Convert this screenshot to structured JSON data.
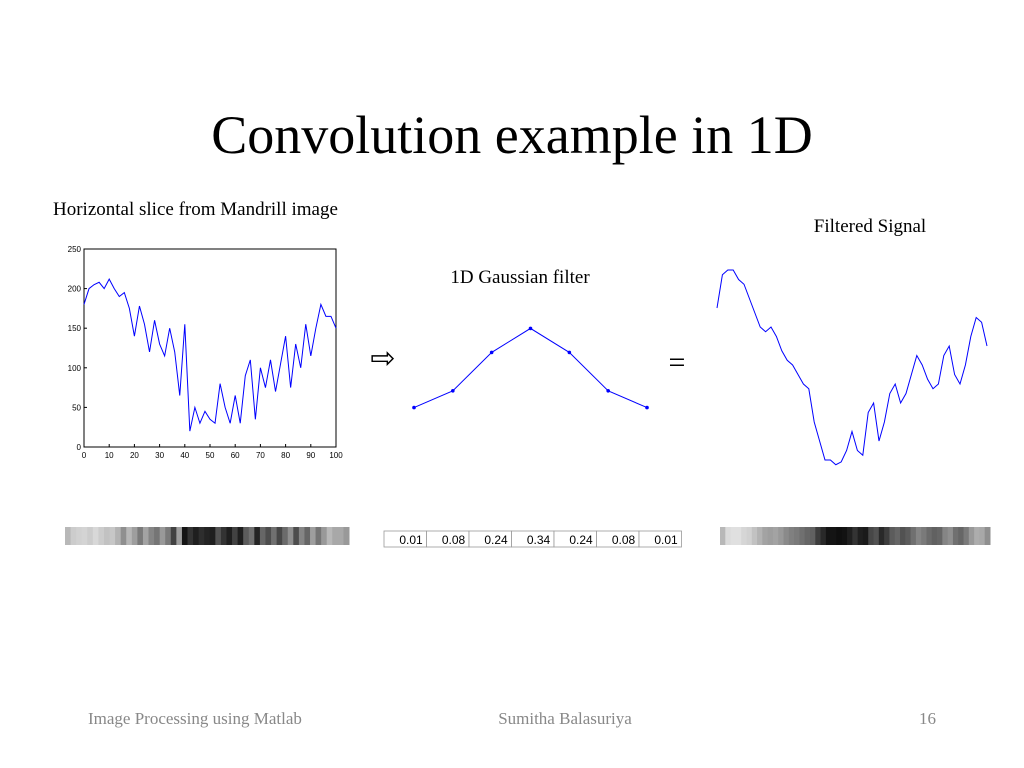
{
  "title": "Convolution example in 1D",
  "labels": {
    "signal": "Horizontal slice from Mandrill image",
    "filter": "1D Gaussian filter",
    "filtered": "Filtered Signal",
    "operator": "⇨",
    "equals": "="
  },
  "footer": {
    "left": "Image Processing using Matlab",
    "center": "Sumitha Balasuriya",
    "page": "16"
  },
  "chart_data": [
    {
      "type": "line",
      "color": "#0000ff",
      "x": [
        0,
        2,
        4,
        6,
        8,
        10,
        12,
        14,
        16,
        18,
        20,
        22,
        24,
        26,
        28,
        30,
        32,
        34,
        36,
        38,
        40,
        42,
        44,
        46,
        48,
        50,
        52,
        54,
        56,
        58,
        60,
        62,
        64,
        66,
        68,
        70,
        72,
        74,
        76,
        78,
        80,
        82,
        84,
        86,
        88,
        90,
        92,
        94,
        96,
        98,
        100
      ],
      "values": [
        180,
        200,
        205,
        208,
        200,
        212,
        200,
        190,
        195,
        175,
        140,
        178,
        155,
        120,
        160,
        130,
        115,
        150,
        120,
        65,
        155,
        20,
        50,
        30,
        45,
        35,
        30,
        80,
        50,
        30,
        65,
        30,
        90,
        110,
        35,
        100,
        75,
        110,
        70,
        105,
        140,
        75,
        130,
        100,
        155,
        115,
        150,
        180,
        165,
        165,
        150
      ],
      "xlim": [
        0,
        100
      ],
      "xticks": [
        0,
        10,
        20,
        30,
        40,
        50,
        60,
        70,
        80,
        90,
        100
      ],
      "ylim": [
        0,
        250
      ],
      "yticks": [
        0,
        50,
        100,
        150,
        200,
        250
      ]
    },
    {
      "type": "line",
      "color": "#0000ff",
      "values": [
        0.01,
        0.08,
        0.24,
        0.34,
        0.24,
        0.08,
        0.01
      ]
    },
    {
      "type": "line",
      "color": "#0000ff",
      "values": [
        180,
        215,
        220,
        220,
        210,
        205,
        190,
        175,
        160,
        155,
        160,
        150,
        135,
        125,
        120,
        110,
        100,
        95,
        60,
        40,
        20,
        20,
        15,
        18,
        30,
        50,
        30,
        25,
        70,
        80,
        40,
        60,
        90,
        100,
        80,
        90,
        110,
        130,
        120,
        105,
        95,
        100,
        130,
        140,
        110,
        100,
        120,
        150,
        170,
        165,
        140
      ]
    }
  ]
}
